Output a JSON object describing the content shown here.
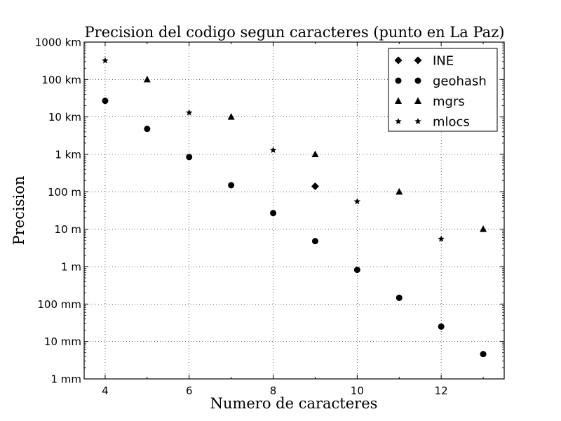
{
  "chart_data": {
    "type": "scatter",
    "title": "Precision del codigo segun caracteres (punto en La Paz)",
    "xlabel": "Numero de caracteres",
    "ylabel": "Precision",
    "xlim": [
      3.5,
      13.5
    ],
    "ylim": [
      0.001,
      1000000
    ],
    "y_scale": "log",
    "grid": true,
    "legend_position": "top-right",
    "x_ticks": [
      {
        "value": 4,
        "label": "4"
      },
      {
        "value": 6,
        "label": "6"
      },
      {
        "value": 8,
        "label": "8"
      },
      {
        "value": 10,
        "label": "10"
      },
      {
        "value": 12,
        "label": "12"
      }
    ],
    "y_ticks": [
      {
        "value": 1000000,
        "label": "1000 km"
      },
      {
        "value": 100000,
        "label": "100 km"
      },
      {
        "value": 10000,
        "label": "10 km"
      },
      {
        "value": 1000,
        "label": "1 km"
      },
      {
        "value": 100,
        "label": "100 m"
      },
      {
        "value": 10,
        "label": "10 m"
      },
      {
        "value": 1,
        "label": "1 m"
      },
      {
        "value": 0.1,
        "label": "100 mm"
      },
      {
        "value": 0.01,
        "label": "10 mm"
      },
      {
        "value": 0.001,
        "label": "1 mm"
      }
    ],
    "series": [
      {
        "name": "INE",
        "marker": "diamond",
        "x": [
          9
        ],
        "y": [
          140
        ]
      },
      {
        "name": "geohash",
        "marker": "circle",
        "x": [
          4,
          5,
          6,
          7,
          8,
          9,
          10,
          11,
          12,
          13
        ],
        "y": [
          27000,
          4800,
          850,
          150,
          27,
          4.8,
          0.82,
          0.147,
          0.025,
          0.0046
        ]
      },
      {
        "name": "mgrs",
        "marker": "triangle",
        "x": [
          5,
          7,
          9,
          11,
          13
        ],
        "y": [
          100000,
          10000,
          1000,
          100,
          10
        ]
      },
      {
        "name": "mlocs",
        "marker": "star",
        "x": [
          4,
          6,
          8,
          10,
          12
        ],
        "y": [
          320000,
          13000,
          1300,
          55,
          5.5
        ]
      }
    ]
  }
}
